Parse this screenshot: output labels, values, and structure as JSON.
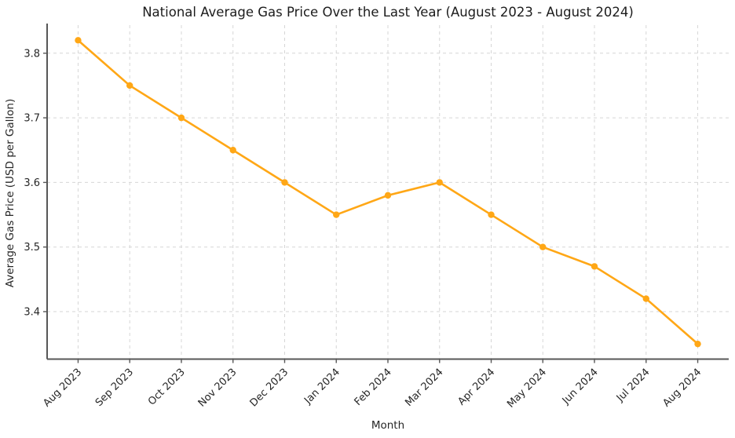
{
  "chart_data": {
    "type": "line",
    "title": "National Average Gas Price Over the Last Year (August 2023 - August 2024)",
    "xlabel": "Month",
    "ylabel": "Average Gas Price (USD per Gallon)",
    "categories": [
      "Aug 2023",
      "Sep 2023",
      "Oct 2023",
      "Nov 2023",
      "Dec 2023",
      "Jan 2024",
      "Feb 2024",
      "Mar 2024",
      "Apr 2024",
      "May 2024",
      "Jun 2024",
      "Jul 2024",
      "Aug 2024"
    ],
    "series": [
      {
        "name": "National Average Gas Price",
        "values": [
          3.82,
          3.75,
          3.7,
          3.65,
          3.6,
          3.55,
          3.58,
          3.6,
          3.55,
          3.5,
          3.47,
          3.42,
          3.35
        ],
        "color": "#FFA716",
        "marker": "circle"
      }
    ],
    "y_ticks": [
      3.4,
      3.5,
      3.6,
      3.7,
      3.8
    ],
    "ylim": [
      3.3265,
      3.8435
    ],
    "xlim": [
      -0.6,
      12.6
    ],
    "grid": true,
    "grid_style": "dashed",
    "legend_position": "none",
    "x_tick_rotation": 45
  },
  "styles": {
    "line_color": "#FFA716",
    "grid_color": "#d6d6d6",
    "spine_color": "#575757",
    "tick_color": "#575757",
    "text_color": "#262626",
    "background_color": "#ffffff"
  }
}
